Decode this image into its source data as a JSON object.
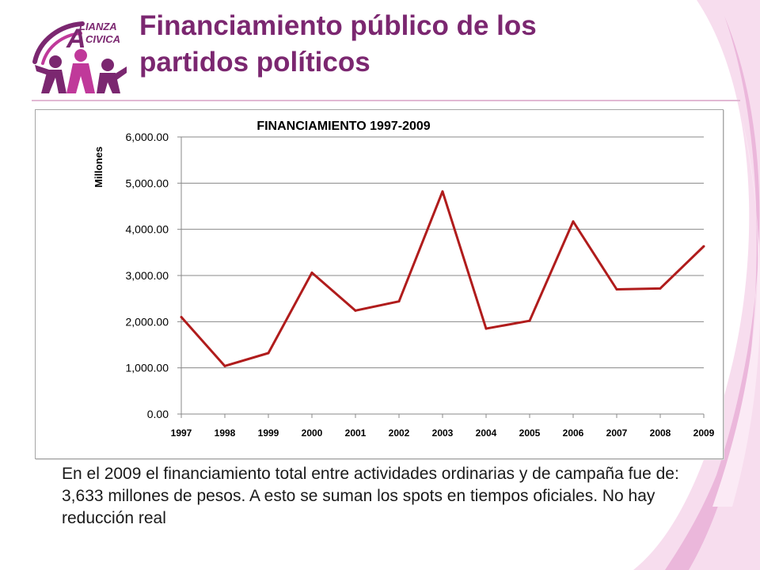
{
  "slide": {
    "title_line1": "Financiamiento público de los",
    "title_line2": "partidos políticos",
    "logo_text_line1": "LIANZA",
    "logo_text_line2": "CIVICA",
    "logo_initial": "A",
    "body_text": "En el 2009 el financiamiento total entre actividades ordinarias y de campaña fue de: 3,633 millones de pesos. A esto se suman los spots en tiempos oficiales. No hay reducción real"
  },
  "colors": {
    "title": "#7b2770",
    "logo_purple": "#7b2770",
    "logo_magenta": "#c0399a",
    "series_line": "#b01c1c",
    "gridline": "#888888",
    "decor_pink": "#e7a9d4"
  },
  "chart_data": {
    "type": "line",
    "title": "FINANCIAMIENTO 1997-2009",
    "xlabel": "",
    "ylabel": "Millones",
    "categories": [
      "1997",
      "1998",
      "1999",
      "2000",
      "2001",
      "2002",
      "2003",
      "2004",
      "2005",
      "2006",
      "2007",
      "2008",
      "2009"
    ],
    "series": [
      {
        "values": [
          2100,
          1040,
          1320,
          3060,
          2240,
          2440,
          4820,
          1850,
          2020,
          4170,
          2700,
          2720,
          3633
        ]
      }
    ],
    "ylim": [
      0,
      6000
    ],
    "yticks": [
      "0.00",
      "1,000.00",
      "2,000.00",
      "3,000.00",
      "4,000.00",
      "5,000.00",
      "6,000.00"
    ],
    "grid": true,
    "legend": "none"
  }
}
